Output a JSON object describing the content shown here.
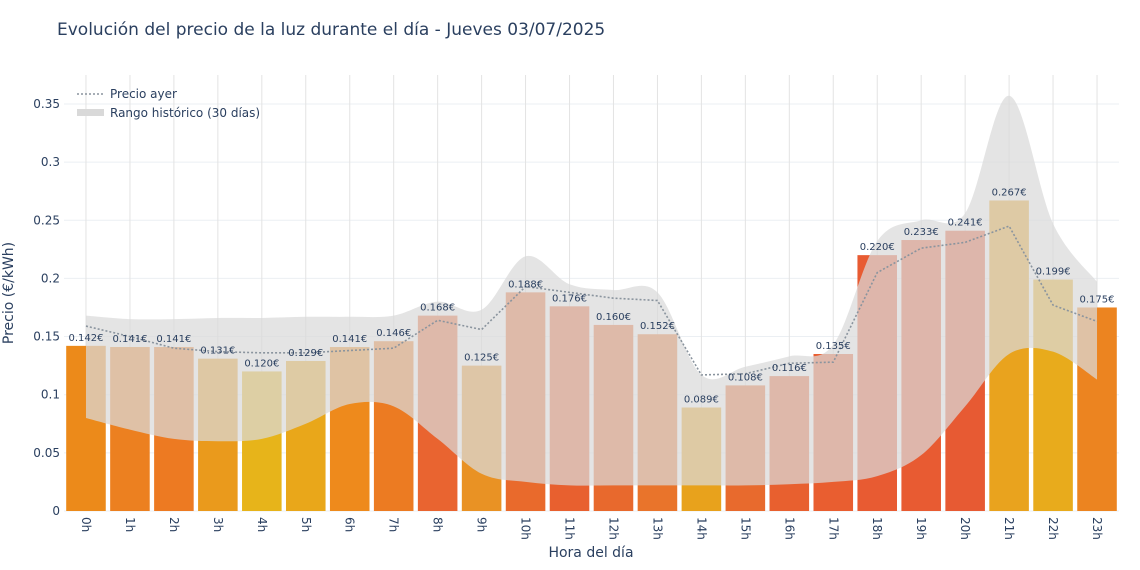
{
  "chart_data": {
    "type": "bar",
    "title": "Evolución del precio de la luz durante el día - Jueves 03/07/2025",
    "xlabel": "Hora del día",
    "ylabel": "Precio (€/kWh)",
    "ylim": [
      0,
      0.375
    ],
    "yticks": [
      0,
      0.05,
      0.1,
      0.15,
      0.2,
      0.25,
      0.3,
      0.35
    ],
    "ytick_labels": [
      "0",
      "0.05",
      "0.1",
      "0.15",
      "0.2",
      "0.25",
      "0.3",
      "0.35"
    ],
    "categories": [
      "0h",
      "1h",
      "2h",
      "3h",
      "4h",
      "5h",
      "6h",
      "7h",
      "8h",
      "9h",
      "10h",
      "11h",
      "12h",
      "13h",
      "14h",
      "15h",
      "16h",
      "17h",
      "18h",
      "19h",
      "20h",
      "21h",
      "22h",
      "23h"
    ],
    "values": [
      0.142,
      0.141,
      0.141,
      0.131,
      0.12,
      0.129,
      0.141,
      0.146,
      0.168,
      0.125,
      0.188,
      0.176,
      0.16,
      0.152,
      0.089,
      0.108,
      0.116,
      0.135,
      0.22,
      0.233,
      0.241,
      0.267,
      0.199,
      0.175
    ],
    "bar_labels": [
      "0.142€",
      "0.141€",
      "0.141€",
      "0.131€",
      "0.120€",
      "0.129€",
      "0.141€",
      "0.146€",
      "0.168€",
      "0.125€",
      "0.188€",
      "0.176€",
      "0.160€",
      "0.152€",
      "0.089€",
      "0.108€",
      "0.116€",
      "0.135€",
      "0.220€",
      "0.233€",
      "0.241€",
      "0.267€",
      "0.199€",
      "0.175€"
    ],
    "bar_colors": [
      "#ec8a1a",
      "#ec8020",
      "#ed7a22",
      "#ea9a1c",
      "#e7b41a",
      "#e9a71a",
      "#ee8a1c",
      "#ec7b22",
      "#e96430",
      "#e99224",
      "#e96a2c",
      "#e8602f",
      "#e8692d",
      "#e9742b",
      "#e8a21c",
      "#e86a2d",
      "#e8602f",
      "#e95e30",
      "#e85b32",
      "#e85b32",
      "#e75a33",
      "#e9a31e",
      "#e8ab1c",
      "#ec8420"
    ],
    "series": [
      {
        "name": "Precio ayer",
        "type": "line",
        "style": "dotted",
        "color": "#8a949e",
        "values": [
          0.159,
          0.15,
          0.14,
          0.137,
          0.136,
          0.136,
          0.138,
          0.14,
          0.164,
          0.156,
          0.193,
          0.188,
          0.183,
          0.181,
          0.117,
          0.118,
          0.127,
          0.128,
          0.205,
          0.226,
          0.231,
          0.245,
          0.177,
          0.163
        ]
      },
      {
        "name": "Rango histórico (30 días)",
        "type": "band",
        "color": "#d9d9d9",
        "upper": [
          0.168,
          0.165,
          0.165,
          0.166,
          0.166,
          0.167,
          0.167,
          0.168,
          0.18,
          0.173,
          0.219,
          0.195,
          0.19,
          0.188,
          0.117,
          0.124,
          0.133,
          0.143,
          0.232,
          0.25,
          0.256,
          0.357,
          0.247,
          0.197
        ],
        "lower": [
          0.08,
          0.07,
          0.062,
          0.06,
          0.062,
          0.075,
          0.092,
          0.09,
          0.062,
          0.032,
          0.025,
          0.022,
          0.022,
          0.022,
          0.022,
          0.022,
          0.023,
          0.025,
          0.03,
          0.048,
          0.09,
          0.135,
          0.137,
          0.113
        ]
      }
    ],
    "legend": {
      "placement": "top-left",
      "entries": [
        "Precio ayer",
        "Rango histórico (30 días)"
      ]
    },
    "grid": true
  }
}
